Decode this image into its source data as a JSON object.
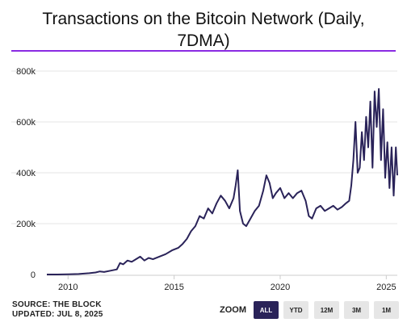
{
  "theme": {
    "line_color": "#2a2359",
    "accent": "#8a2be2",
    "active_zoom_bg": "#2a2359",
    "grid_color": "#e6e6e6"
  },
  "header": {
    "title_line1": "Transactions on the Bitcoin Network (Daily,",
    "title_line2": "7DMA)"
  },
  "footer": {
    "source": "SOURCE: THE BLOCK",
    "updated": "UPDATED: JUL 8, 2025"
  },
  "zoom": {
    "label": "ZOOM",
    "buttons": [
      {
        "label": "ALL",
        "active": true
      },
      {
        "label": "YTD",
        "active": false
      },
      {
        "label": "12M",
        "active": false
      },
      {
        "label": "3M",
        "active": false
      },
      {
        "label": "1M",
        "active": false
      }
    ]
  },
  "chart_data": {
    "type": "line",
    "title": "Transactions on the Bitcoin Network (Daily, 7DMA)",
    "xlabel": "",
    "ylabel": "",
    "xlim": [
      2009.0,
      2025.52
    ],
    "ylim": [
      0,
      800000
    ],
    "x_ticks": [
      2010,
      2015,
      2020,
      2025
    ],
    "y_ticks": [
      0,
      200000,
      400000,
      600000,
      800000
    ],
    "y_tick_labels": [
      "0",
      "200k",
      "400k",
      "600k",
      "800k"
    ],
    "grid": true,
    "legend": "none",
    "series": [
      {
        "x": [
          2009.0,
          2009.5,
          2010.0,
          2010.5,
          2011.0,
          2011.3,
          2011.5,
          2011.7,
          2012.0,
          2012.3,
          2012.45,
          2012.6,
          2012.8,
          2013.0,
          2013.2,
          2013.4,
          2013.6,
          2013.8,
          2014.0,
          2014.3,
          2014.6,
          2014.9,
          2015.2,
          2015.4,
          2015.6,
          2015.8,
          2016.0,
          2016.2,
          2016.4,
          2016.6,
          2016.8,
          2017.0,
          2017.2,
          2017.4,
          2017.6,
          2017.8,
          2017.9,
          2018.0,
          2018.1,
          2018.25,
          2018.4,
          2018.6,
          2018.8,
          2019.0,
          2019.2,
          2019.35,
          2019.5,
          2019.65,
          2019.8,
          2020.0,
          2020.2,
          2020.4,
          2020.6,
          2020.8,
          2021.0,
          2021.2,
          2021.35,
          2021.5,
          2021.7,
          2021.9,
          2022.1,
          2022.3,
          2022.5,
          2022.7,
          2022.9,
          2023.1,
          2023.25,
          2023.35,
          2023.45,
          2023.55,
          2023.65,
          2023.75,
          2023.85,
          2023.95,
          2024.05,
          2024.15,
          2024.25,
          2024.35,
          2024.45,
          2024.55,
          2024.65,
          2024.75,
          2024.85,
          2024.95,
          2025.05,
          2025.15,
          2025.25,
          2025.35,
          2025.45,
          2025.52
        ],
        "values": [
          0,
          0,
          1000,
          2000,
          5000,
          8000,
          12000,
          10000,
          15000,
          20000,
          45000,
          40000,
          55000,
          50000,
          60000,
          70000,
          55000,
          65000,
          60000,
          70000,
          80000,
          95000,
          105000,
          120000,
          140000,
          170000,
          190000,
          230000,
          220000,
          260000,
          240000,
          280000,
          310000,
          290000,
          260000,
          300000,
          350000,
          410000,
          250000,
          200000,
          190000,
          220000,
          250000,
          270000,
          330000,
          390000,
          360000,
          300000,
          320000,
          340000,
          300000,
          320000,
          300000,
          320000,
          330000,
          290000,
          230000,
          220000,
          260000,
          270000,
          250000,
          260000,
          270000,
          255000,
          265000,
          280000,
          290000,
          350000,
          450000,
          600000,
          400000,
          420000,
          560000,
          450000,
          620000,
          500000,
          680000,
          420000,
          720000,
          580000,
          730000,
          450000,
          650000,
          380000,
          520000,
          340000,
          500000,
          310000,
          500000,
          390000
        ]
      }
    ]
  }
}
